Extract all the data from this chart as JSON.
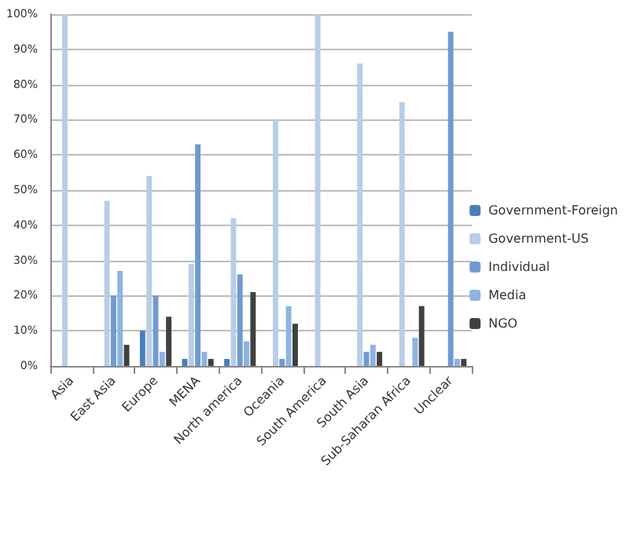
{
  "chart_data": {
    "type": "bar",
    "categories": [
      "Asia",
      "East Asia",
      "Europe",
      "MENA",
      "North america",
      "Oceania",
      "South America",
      "South Asia",
      "Sub-Saharan Africa",
      "Unclear"
    ],
    "series": [
      {
        "name": "Government-Foreign",
        "color": "#4a7ebb",
        "values": [
          0,
          0,
          10,
          2,
          2,
          0,
          0,
          0,
          0,
          0
        ]
      },
      {
        "name": "Government-US",
        "color": "#b9cde5",
        "values": [
          100,
          47,
          54,
          29,
          42,
          70,
          100,
          86,
          75,
          0
        ]
      },
      {
        "name": "Individual",
        "color": "#6f9bd1",
        "values": [
          0,
          20,
          20,
          63,
          26,
          2,
          0,
          4,
          0,
          95
        ]
      },
      {
        "name": "Media",
        "color": "#8db3e2",
        "values": [
          0,
          27,
          4,
          4,
          7,
          17,
          0,
          6,
          8,
          2
        ]
      },
      {
        "name": "NGO",
        "color": "#404040",
        "values": [
          0,
          6,
          14,
          2,
          21,
          12,
          0,
          4,
          17,
          2
        ]
      }
    ],
    "ylim": [
      0,
      100
    ],
    "yticks": [
      {
        "value": 0,
        "label": "0%"
      },
      {
        "value": 10,
        "label": "10%"
      },
      {
        "value": 20,
        "label": "20%"
      },
      {
        "value": 30,
        "label": "30%"
      },
      {
        "value": 40,
        "label": "40%"
      },
      {
        "value": 50,
        "label": "50%"
      },
      {
        "value": 60,
        "label": "60%"
      },
      {
        "value": 70,
        "label": "70%"
      },
      {
        "value": 80,
        "label": "80%"
      },
      {
        "value": 90,
        "label": "90%"
      },
      {
        "value": 100,
        "label": "100%"
      }
    ],
    "grid": "y",
    "legend": "right"
  }
}
